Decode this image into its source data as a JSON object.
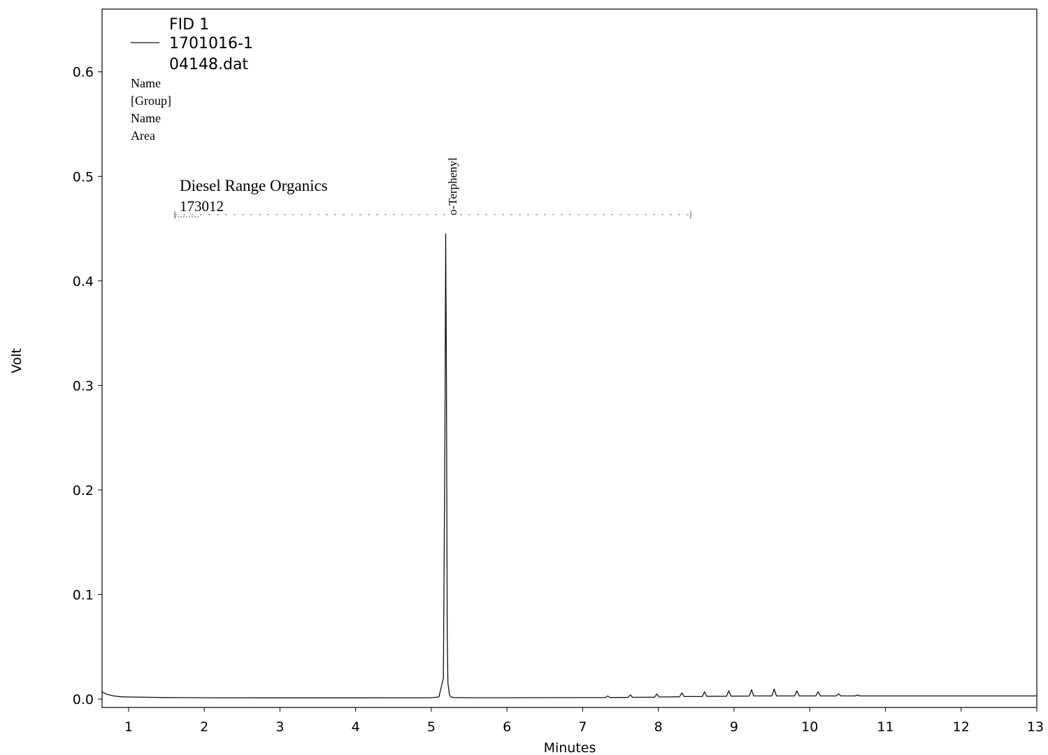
{
  "legend": {
    "detector": "FID 1",
    "sample": "1701016-1",
    "file": "04148.dat",
    "fields": [
      "Name",
      "[Group]",
      "Name",
      "Area"
    ]
  },
  "colors": {
    "trace": "#111111",
    "axis": "#000000",
    "background": "#ffffff"
  },
  "chart_data": {
    "type": "line",
    "xlabel": "Minutes",
    "ylabel": "Volt",
    "xlim": [
      0.65,
      13.0
    ],
    "ylim": [
      -0.008,
      0.66
    ],
    "x_ticks": [
      1,
      2,
      3,
      4,
      5,
      6,
      7,
      8,
      9,
      10,
      11,
      12,
      13
    ],
    "y_ticks": [
      0.0,
      0.1,
      0.2,
      0.3,
      0.4,
      0.5,
      0.6
    ],
    "y_tick_labels": [
      "0.0",
      "0.1",
      "0.2",
      "0.3",
      "0.4",
      "0.5",
      "0.6"
    ],
    "grid": false,
    "series": [
      {
        "name": "1701016-1",
        "x": [
          0.65,
          0.7,
          0.8,
          0.9,
          1.0,
          1.5,
          2.0,
          3.0,
          4.0,
          5.0,
          5.1,
          5.16,
          5.18,
          5.19,
          5.2,
          5.21,
          5.22,
          5.24,
          5.26,
          5.3,
          5.5,
          6.0,
          7.0,
          7.3,
          7.33,
          7.36,
          7.6,
          7.63,
          7.66,
          7.95,
          7.98,
          8.01,
          8.28,
          8.31,
          8.34,
          8.58,
          8.61,
          8.64,
          8.9,
          8.93,
          8.96,
          9.2,
          9.23,
          9.26,
          9.5,
          9.53,
          9.56,
          9.8,
          9.83,
          9.86,
          10.08,
          10.11,
          10.14,
          10.35,
          10.38,
          10.41,
          10.6,
          10.63,
          10.66,
          11.0,
          12.0,
          13.0
        ],
        "y": [
          0.007,
          0.005,
          0.003,
          0.0022,
          0.002,
          0.0015,
          0.0013,
          0.0012,
          0.0012,
          0.0013,
          0.002,
          0.02,
          0.25,
          0.445,
          0.3,
          0.06,
          0.015,
          0.004,
          0.002,
          0.0015,
          0.0013,
          0.0013,
          0.0014,
          0.0014,
          0.003,
          0.0015,
          0.0016,
          0.004,
          0.0017,
          0.0018,
          0.005,
          0.002,
          0.0022,
          0.006,
          0.0024,
          0.0025,
          0.007,
          0.0026,
          0.0027,
          0.008,
          0.0028,
          0.0029,
          0.009,
          0.003,
          0.003,
          0.0095,
          0.003,
          0.003,
          0.008,
          0.003,
          0.003,
          0.007,
          0.003,
          0.003,
          0.005,
          0.003,
          0.003,
          0.004,
          0.003,
          0.003,
          0.003,
          0.003
        ]
      }
    ],
    "annotations": [
      {
        "text": "o-Terphenyl",
        "x": 5.19,
        "orientation": "vertical"
      },
      {
        "text": "Diesel Range Organics",
        "x_start": 1.65,
        "x_end": 8.45,
        "y": 0.46
      },
      {
        "text": "173012",
        "x_start": 1.65,
        "x_end": 8.45,
        "y": 0.46
      }
    ]
  }
}
